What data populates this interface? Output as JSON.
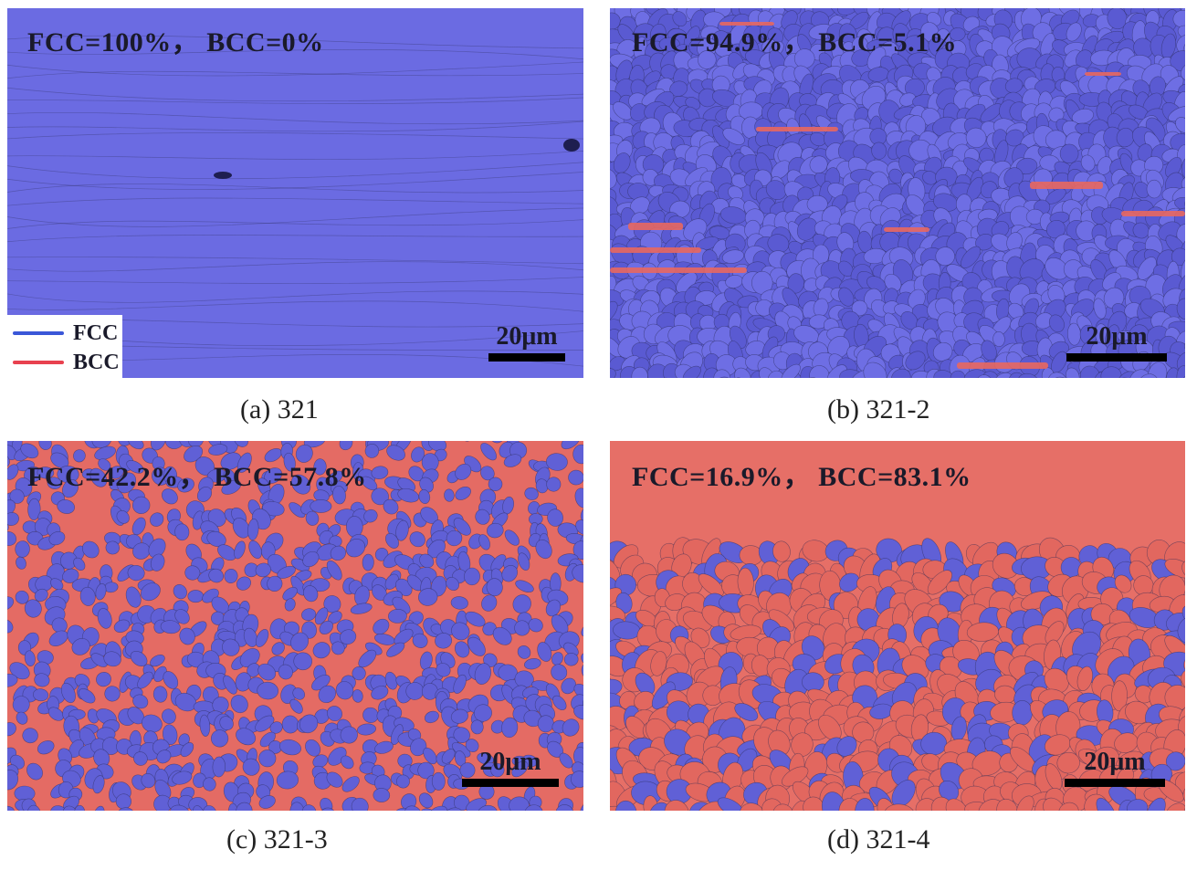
{
  "panels": [
    {
      "id": "a",
      "phase_text": "FCC=100%， BCC=0%",
      "scale": "20μm",
      "caption": "(a)  321",
      "fcc_fraction": 1.0,
      "bcc_fraction": 0.0
    },
    {
      "id": "b",
      "phase_text": "FCC=94.9%， BCC=5.1%",
      "scale": "20μm",
      "caption": "(b)  321-2",
      "fcc_fraction": 0.949,
      "bcc_fraction": 0.051
    },
    {
      "id": "c",
      "phase_text": "FCC=42.2%， BCC=57.8%",
      "scale": "20μm",
      "caption": "(c)  321-3",
      "fcc_fraction": 0.422,
      "bcc_fraction": 0.578
    },
    {
      "id": "d",
      "phase_text": "FCC=16.9%， BCC=83.1%",
      "scale": "20μm",
      "caption": "(d)  321-4",
      "fcc_fraction": 0.169,
      "bcc_fraction": 0.831
    }
  ],
  "legend": [
    {
      "label": "FCC",
      "color": "#3a57d8"
    },
    {
      "label": "BCC",
      "color": "#e8414f"
    }
  ],
  "colors": {
    "fcc_fill": "#6a6ae0",
    "bcc_fill": "#e8675f",
    "grain_boundary": "#2a2a55"
  }
}
